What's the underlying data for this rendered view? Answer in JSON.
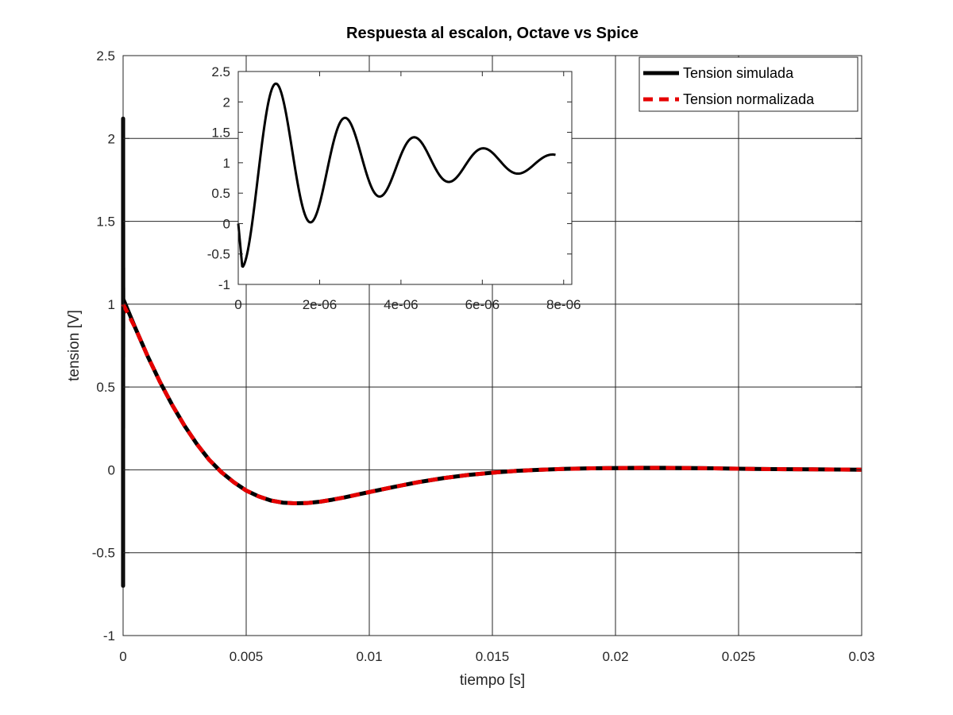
{
  "colors": {
    "background": "#ffffff",
    "axes_frame": "#262626",
    "grid": "#262626",
    "series_black": "#000000",
    "series_red": "#e60000"
  },
  "chart_data": [
    {
      "type": "line",
      "title": "Respuesta al escalon, Octave vs Spice",
      "xlabel": "tiempo [s]",
      "ylabel": "tension [V]",
      "xlim": [
        0,
        0.03
      ],
      "ylim": [
        -1,
        2.5
      ],
      "xticks": [
        0,
        0.005,
        0.01,
        0.015,
        0.02,
        0.025,
        0.03
      ],
      "xtick_labels": [
        "0",
        "0.005",
        "0.01",
        "0.015",
        "0.02",
        "0.025",
        "0.03"
      ],
      "yticks": [
        -1,
        -0.5,
        0,
        0.5,
        1,
        1.5,
        2,
        2.5
      ],
      "ytick_labels": [
        "-1",
        "-0.5",
        "0",
        "0.5",
        "1",
        "1.5",
        "2",
        "2.5"
      ],
      "grid": true,
      "legend": "top-right",
      "series": [
        {
          "name": "Tension simulada",
          "color": "#000000",
          "style": "solid",
          "x": [
            0,
            1e-07,
            9e-07,
            1.9e-06,
            2.8e-06,
            3.6e-06,
            4.5e-06,
            5.3e-06,
            6.2e-06,
            7e-06,
            7.6e-06,
            0.0005,
            0.001,
            0.0015,
            0.002,
            0.0025,
            0.003,
            0.0035,
            0.004,
            0.0045,
            0.005,
            0.0055,
            0.006,
            0.0065,
            0.007,
            0.0075,
            0.008,
            0.0085,
            0.009,
            0.0095,
            0.01,
            0.011,
            0.012,
            0.013,
            0.014,
            0.015,
            0.016,
            0.017,
            0.018,
            0.019,
            0.02,
            0.021,
            0.022,
            0.023,
            0.024,
            0.025,
            0.026,
            0.027,
            0.028,
            0.029,
            0.03
          ],
          "y": [
            0,
            -0.7,
            2.12,
            0.25,
            1.48,
            0.68,
            1.22,
            0.85,
            1.1,
            0.94,
            1.03,
            0.855,
            0.685,
            0.53,
            0.39,
            0.265,
            0.155,
            0.06,
            -0.015,
            -0.075,
            -0.125,
            -0.16,
            -0.185,
            -0.198,
            -0.202,
            -0.2,
            -0.192,
            -0.18,
            -0.166,
            -0.15,
            -0.134,
            -0.103,
            -0.074,
            -0.05,
            -0.031,
            -0.017,
            -0.006,
            0.001,
            0.006,
            0.009,
            0.011,
            0.012,
            0.012,
            0.011,
            0.009,
            0.007,
            0.005,
            0.004,
            0.003,
            0.002,
            0.001
          ]
        },
        {
          "name": "Tension normalizada",
          "color": "#e60000",
          "style": "dashed",
          "x": [
            0,
            0.0005,
            0.001,
            0.0015,
            0.002,
            0.0025,
            0.003,
            0.0035,
            0.004,
            0.0045,
            0.005,
            0.0055,
            0.006,
            0.0065,
            0.007,
            0.0075,
            0.008,
            0.0085,
            0.009,
            0.0095,
            0.01,
            0.011,
            0.012,
            0.013,
            0.014,
            0.015,
            0.016,
            0.017,
            0.018,
            0.019,
            0.02,
            0.021,
            0.022,
            0.023,
            0.024,
            0.025,
            0.026,
            0.027,
            0.028,
            0.029,
            0.03
          ],
          "y": [
            1,
            0.855,
            0.685,
            0.53,
            0.39,
            0.265,
            0.155,
            0.06,
            -0.015,
            -0.075,
            -0.125,
            -0.16,
            -0.185,
            -0.198,
            -0.202,
            -0.2,
            -0.192,
            -0.18,
            -0.166,
            -0.15,
            -0.134,
            -0.103,
            -0.074,
            -0.05,
            -0.031,
            -0.017,
            -0.006,
            0.001,
            0.006,
            0.009,
            0.011,
            0.012,
            0.012,
            0.011,
            0.009,
            0.007,
            0.005,
            0.004,
            0.003,
            0.002,
            0.001
          ]
        }
      ]
    },
    {
      "type": "line",
      "title": "",
      "xlabel": "",
      "ylabel": "",
      "xlim": [
        0,
        8.2e-06
      ],
      "ylim": [
        -1,
        2.5
      ],
      "xticks": [
        0,
        2e-06,
        4e-06,
        6e-06,
        8e-06
      ],
      "xtick_labels": [
        "0",
        "2e-06",
        "4e-06",
        "6e-06",
        "8e-06"
      ],
      "yticks": [
        -1,
        -0.5,
        0,
        0.5,
        1,
        1.5,
        2,
        2.5
      ],
      "ytick_labels": [
        "-1",
        "-0.5",
        "0",
        "0.5",
        "1",
        "1.5",
        "2",
        "2.5"
      ],
      "grid": false,
      "legend": "none",
      "series": [
        {
          "color": "#000000",
          "style": "solid",
          "decay_time_constant": 3e-06,
          "oscillation_period": 1.7e-06,
          "phase_shift": 1e-07,
          "amplitude": 1.1,
          "steady_state": 1.0,
          "x_end": 7.8e-06
        }
      ]
    }
  ]
}
